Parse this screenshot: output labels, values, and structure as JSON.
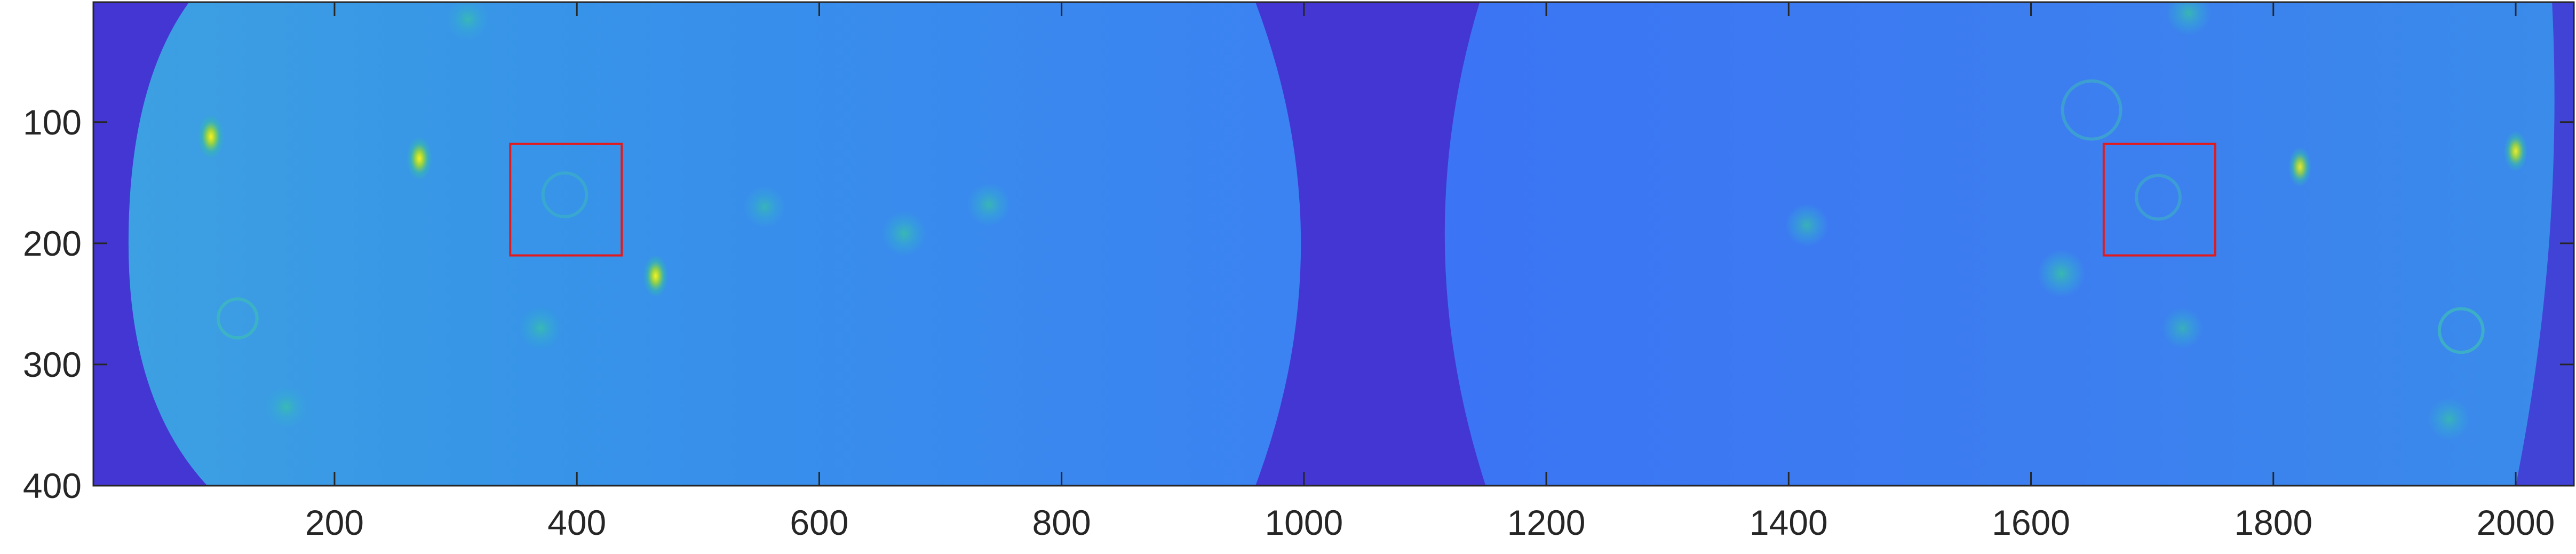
{
  "chart_data": {
    "type": "heatmap",
    "title": "",
    "xlabel": "",
    "ylabel": "",
    "xlim": [
      1,
      2048
    ],
    "ylim": [
      400,
      1
    ],
    "x_ticks": [
      "200",
      "400",
      "600",
      "800",
      "1000",
      "1200",
      "1400",
      "1600",
      "1800",
      "2000"
    ],
    "y_ticks": [
      "100",
      "200",
      "300",
      "400"
    ],
    "x_tick_values": [
      200,
      400,
      600,
      800,
      1000,
      1200,
      1400,
      1600,
      1800,
      2000
    ],
    "y_tick_values": [
      100,
      200,
      300,
      400
    ],
    "grid": false,
    "colormap": "parula",
    "colors": {
      "background_low": "#4336d3",
      "field_base": "#3d82f0",
      "field_left_inner": "#3492e8",
      "spot_hot": "#f5ec26",
      "spot_warm": "#2fc3a8",
      "roi_box": "#e31a1c",
      "axis": "#262626"
    },
    "fields": [
      {
        "name": "",
        "x_range": [
          30,
          975
        ],
        "y_range": [
          1,
          400
        ]
      },
      {
        "name": "",
        "x_range": [
          1120,
          2048
        ],
        "y_range": [
          1,
          400
        ]
      }
    ],
    "regions_of_interest": [
      {
        "x": [
          345,
          437
        ],
        "y": [
          118,
          210
        ]
      },
      {
        "x": [
          1660,
          1752
        ],
        "y": [
          118,
          210
        ]
      }
    ],
    "bright_spots": [
      {
        "x": 98,
        "y": 112,
        "level": 1.0
      },
      {
        "x": 270,
        "y": 130,
        "level": 0.95
      },
      {
        "x": 465,
        "y": 227,
        "level": 0.9
      },
      {
        "x": 1822,
        "y": 137,
        "level": 0.75
      },
      {
        "x": 2000,
        "y": 124,
        "level": 0.8
      },
      {
        "x": 1625,
        "y": 225,
        "level": 0.6
      },
      {
        "x": 670,
        "y": 192,
        "level": 0.5
      },
      {
        "x": 740,
        "y": 168,
        "level": 0.45
      },
      {
        "x": 1415,
        "y": 185,
        "level": 0.45
      },
      {
        "x": 370,
        "y": 270,
        "level": 0.45
      },
      {
        "x": 160,
        "y": 335,
        "level": 0.4
      },
      {
        "x": 1945,
        "y": 345,
        "level": 0.4
      },
      {
        "x": 1725,
        "y": 270,
        "level": 0.35
      },
      {
        "x": 1730,
        "y": 10,
        "level": 0.5
      },
      {
        "x": 310,
        "y": 15,
        "level": 0.4
      },
      {
        "x": 555,
        "y": 170,
        "level": 0.35
      }
    ],
    "ring_features": [
      {
        "x": 120,
        "y": 262,
        "r": 16,
        "level": 0.55
      },
      {
        "x": 1955,
        "y": 272,
        "r": 18,
        "level": 0.6
      },
      {
        "x": 1650,
        "y": 90,
        "r": 24,
        "level": 0.35
      },
      {
        "x": 1705,
        "y": 162,
        "r": 18,
        "level": 0.3
      },
      {
        "x": 390,
        "y": 160,
        "r": 18,
        "level": 0.3
      }
    ]
  }
}
